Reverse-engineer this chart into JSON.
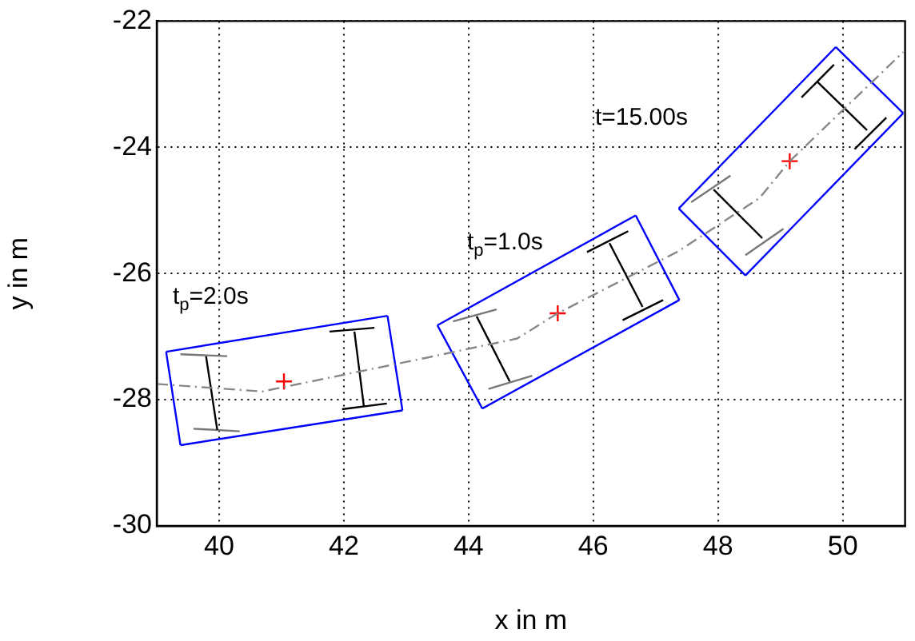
{
  "chart_data": {
    "type": "line",
    "xlabel": "x in m",
    "ylabel": "y in m",
    "xlim": [
      39,
      51
    ],
    "xticks": [
      40,
      42,
      44,
      46,
      48,
      50
    ],
    "ylim": [
      -30,
      -22
    ],
    "yticks": [
      -30,
      -28,
      -26,
      -24,
      -22
    ],
    "grid": true,
    "legend": false,
    "marker": "none",
    "series": [
      {
        "color": "#888888",
        "line_style": "dashed",
        "x": [
          39.0,
          40.69,
          43.35,
          44.78,
          45.43,
          47.36,
          48.67,
          49.15,
          50.97
        ],
        "values": [
          -27.75,
          -27.87,
          -27.33,
          -27.03,
          -26.63,
          -25.65,
          -24.8,
          -24.22,
          -22.49
        ]
      },
      {
        "color": "#0000ff",
        "x": [
          39.15,
          42.7
        ],
        "values": [
          -27.24,
          -26.67
        ]
      },
      {
        "color": "#0000ff",
        "x": [
          42.7,
          42.94
        ],
        "values": [
          -26.67,
          -28.17
        ]
      },
      {
        "color": "#0000ff",
        "x": [
          39.38,
          42.94
        ],
        "values": [
          -28.72,
          -28.17
        ]
      },
      {
        "color": "#0000ff",
        "x": [
          39.15,
          39.38
        ],
        "values": [
          -27.24,
          -28.72
        ]
      },
      {
        "color": "#0000ff",
        "x": [
          43.5,
          46.68
        ],
        "values": [
          -26.82,
          -25.08
        ]
      },
      {
        "color": "#0000ff",
        "x": [
          46.68,
          47.38
        ],
        "values": [
          -25.08,
          -26.42
        ]
      },
      {
        "color": "#0000ff",
        "x": [
          44.22,
          47.38
        ],
        "values": [
          -28.14,
          -26.42
        ]
      },
      {
        "color": "#0000ff",
        "x": [
          43.5,
          44.22
        ],
        "values": [
          -26.82,
          -28.14
        ]
      },
      {
        "color": "#0000ff",
        "x": [
          47.37,
          49.89
        ],
        "values": [
          -24.97,
          -22.41
        ]
      },
      {
        "color": "#0000ff",
        "x": [
          49.89,
          50.97
        ],
        "values": [
          -22.41,
          -23.46
        ]
      },
      {
        "color": "#0000ff",
        "x": [
          48.44,
          50.97
        ],
        "values": [
          -26.03,
          -23.46
        ]
      },
      {
        "color": "#0000ff",
        "x": [
          47.37,
          48.44
        ],
        "values": [
          -24.97,
          -26.03
        ]
      },
      {
        "color": "#000000",
        "x": [
          39.79,
          39.97
        ],
        "values": [
          -27.31,
          -28.48
        ]
      },
      {
        "color": "#000000",
        "x": [
          42.17,
          42.32
        ],
        "values": [
          -26.92,
          -28.1
        ]
      },
      {
        "color": "#000000",
        "x": [
          41.77,
          42.49
        ],
        "values": [
          -26.92,
          -26.86
        ]
      },
      {
        "color": "#000000",
        "x": [
          41.97,
          42.69
        ],
        "values": [
          -28.15,
          -28.06
        ]
      },
      {
        "color": "#000000",
        "x": [
          44.13,
          44.66
        ],
        "values": [
          -26.68,
          -27.71
        ]
      },
      {
        "color": "#000000",
        "x": [
          46.26,
          46.79
        ],
        "values": [
          -25.52,
          -26.53
        ]
      },
      {
        "color": "#000000",
        "x": [
          45.9,
          46.56
        ],
        "values": [
          -25.66,
          -25.33
        ]
      },
      {
        "color": "#000000",
        "x": [
          46.47,
          47.12
        ],
        "values": [
          -26.74,
          -26.42
        ]
      },
      {
        "color": "#000000",
        "x": [
          47.93,
          48.71
        ],
        "values": [
          -24.67,
          -25.44
        ]
      },
      {
        "color": "#000000",
        "x": [
          49.59,
          50.39
        ],
        "values": [
          -22.96,
          -23.73
        ]
      },
      {
        "color": "#000000",
        "x": [
          49.34,
          49.86
        ],
        "values": [
          -23.21,
          -22.69
        ]
      },
      {
        "color": "#000000",
        "x": [
          50.19,
          50.7
        ],
        "values": [
          -24.03,
          -23.53
        ]
      },
      {
        "color": "#777777",
        "x": [
          39.38,
          40.13
        ],
        "values": [
          -27.28,
          -27.31
        ]
      },
      {
        "color": "#777777",
        "x": [
          39.59,
          40.33
        ],
        "values": [
          -28.46,
          -28.5
        ]
      },
      {
        "color": "#777777",
        "x": [
          43.75,
          44.45
        ],
        "values": [
          -26.76,
          -26.57
        ]
      },
      {
        "color": "#777777",
        "x": [
          44.32,
          45.02
        ],
        "values": [
          -27.83,
          -27.62
        ]
      },
      {
        "color": "#777777",
        "x": [
          47.57,
          48.2
        ],
        "values": [
          -24.87,
          -24.45
        ]
      },
      {
        "color": "#777777",
        "x": [
          48.44,
          49.05
        ],
        "values": [
          -25.71,
          -25.29
        ]
      },
      {
        "type": "scatter",
        "color": "#ff0000",
        "marker": "cross",
        "x": [
          41.04,
          45.43,
          49.15
        ],
        "values": [
          -27.71,
          -26.63,
          -24.22
        ]
      }
    ],
    "annotations": [
      "t$_{p}$=2.0s",
      "t$_{p}$=1.0s",
      "t=15.00s"
    ]
  }
}
